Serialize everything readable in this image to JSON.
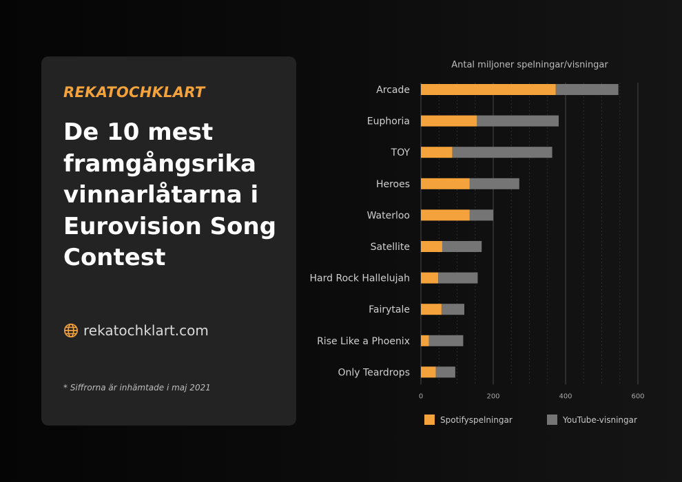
{
  "card": {
    "brand": "REKATOCHKLART",
    "headline": "De 10 mest framgångsrika vinnarlåtarna i Eurovision Song Contest",
    "site": "rekatochklart.com",
    "note": "* Siffrorna är inhämtade i maj 2021",
    "brand_color": "#f4a23b",
    "site_icon": "globe-icon"
  },
  "chart_data": {
    "type": "bar",
    "orientation": "horizontal",
    "stacked": true,
    "title": "Antal miljoner spelningar/visningar",
    "xlabel": "",
    "ylabel": "",
    "categories": [
      "Arcade",
      "Euphoria",
      "TOY",
      "Heroes",
      "Waterloo",
      "Satellite",
      "Hard Rock Hallelujah",
      "Fairytale",
      "Rise Like a Phoenix",
      "Only Teardrops"
    ],
    "series": [
      {
        "name": "Spotifyspelningar",
        "color": "#f4a23b",
        "values": [
          373,
          155,
          87,
          135,
          135,
          59,
          48,
          57,
          22,
          41
        ]
      },
      {
        "name": "YouTube-visningar",
        "color": "#757575",
        "values": [
          173,
          226,
          276,
          137,
          65,
          109,
          109,
          63,
          95,
          54
        ]
      }
    ],
    "xlim": [
      0,
      600
    ],
    "xticks": [
      0,
      200,
      400,
      600
    ],
    "grid": true,
    "legend": "bottom"
  }
}
